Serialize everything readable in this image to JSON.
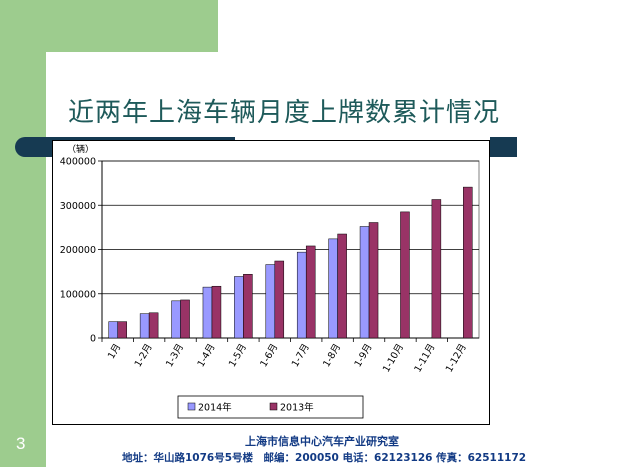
{
  "slide": {
    "title": "近两年上海车辆月度上牌数累计情况",
    "number": "3",
    "footer_org": "上海市信息中心汽车产业研究室",
    "footer_contact": "地址：华山路1076号5号楼　邮编：200050 电话：62123126 传真：62511172"
  },
  "colors": {
    "green_panel": "#9dcc8e",
    "dark_band": "#163a52",
    "title_color": "#1e5a5a",
    "series_2014": "#9999ff",
    "series_2013": "#993366",
    "footer_text": "#123a84"
  },
  "chart_data": {
    "type": "bar",
    "unit_label": "（辆）",
    "categories": [
      "1月",
      "1-2月",
      "1-3月",
      "1-4月",
      "1-5月",
      "1-6月",
      "1-7月",
      "1-8月",
      "1-9月",
      "1-10月",
      "1-11月",
      "1-12月"
    ],
    "series": [
      {
        "name": "2014年",
        "values": [
          37000,
          55000,
          84000,
          115000,
          139000,
          166000,
          194000,
          224000,
          252000,
          null,
          null,
          null
        ]
      },
      {
        "name": "2013年",
        "values": [
          37000,
          57000,
          86000,
          117000,
          144000,
          174000,
          208000,
          235000,
          261000,
          285000,
          313000,
          341000
        ]
      }
    ],
    "yticks": [
      "0",
      "100000",
      "200000",
      "300000",
      "400000"
    ],
    "ylim": [
      0,
      400000
    ],
    "grid": true,
    "legend_position": "bottom"
  }
}
